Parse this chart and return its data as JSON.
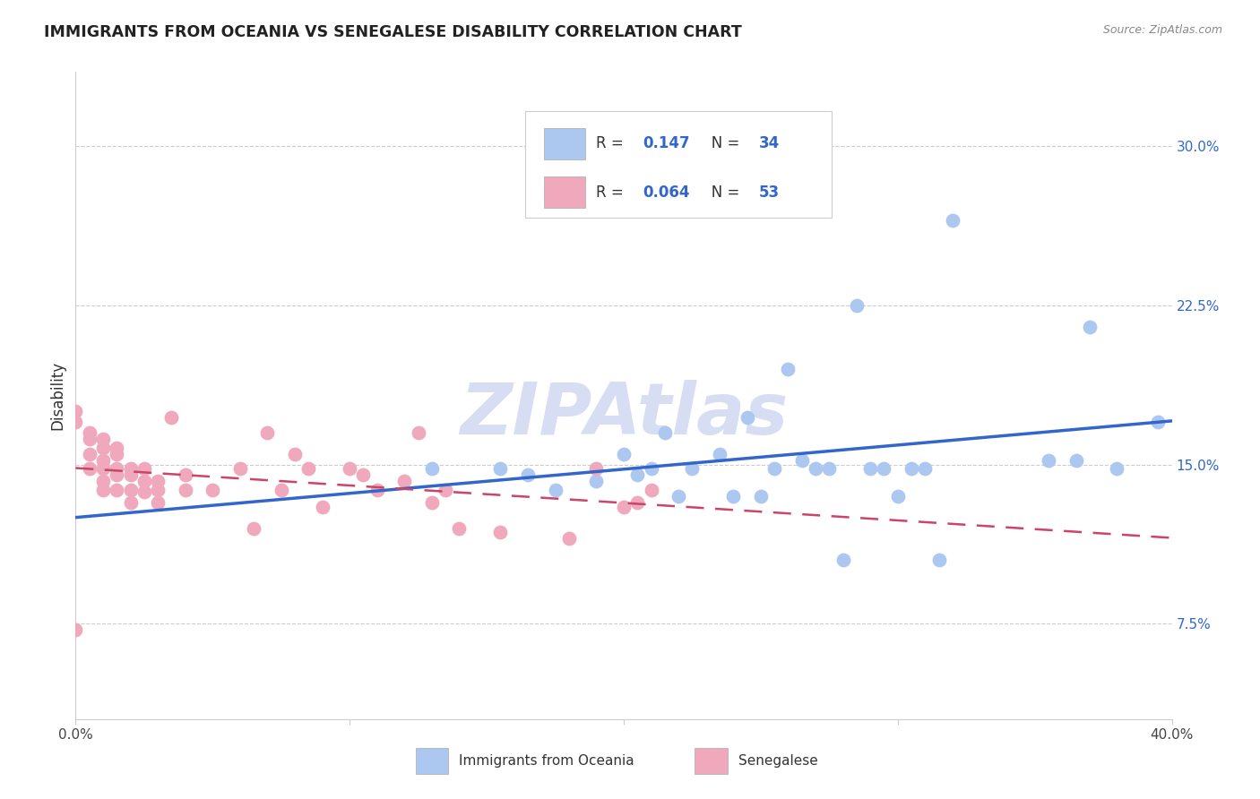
{
  "title": "IMMIGRANTS FROM OCEANIA VS SENEGALESE DISABILITY CORRELATION CHART",
  "source": "Source: ZipAtlas.com",
  "ylabel": "Disability",
  "right_yticks": [
    "30.0%",
    "22.5%",
    "15.0%",
    "7.5%"
  ],
  "right_ytick_vals": [
    0.3,
    0.225,
    0.15,
    0.075
  ],
  "xmin": 0.0,
  "xmax": 0.4,
  "ymin": 0.03,
  "ymax": 0.335,
  "legend_r_blue": "0.147",
  "legend_n_blue": "34",
  "legend_r_pink": "0.064",
  "legend_n_pink": "53",
  "blue_color": "#adc8f0",
  "pink_color": "#f0a8bc",
  "blue_line_color": "#3366cc",
  "pink_line_color": "#cc4466",
  "grid_color": "#cccccc",
  "text_color": "#3366cc",
  "watermark_color": "#d0d8f0",
  "blue_points_x": [
    0.13,
    0.155,
    0.165,
    0.175,
    0.19,
    0.2,
    0.205,
    0.21,
    0.215,
    0.22,
    0.225,
    0.235,
    0.24,
    0.245,
    0.25,
    0.255,
    0.26,
    0.265,
    0.27,
    0.275,
    0.28,
    0.285,
    0.29,
    0.295,
    0.3,
    0.305,
    0.31,
    0.315,
    0.32,
    0.355,
    0.365,
    0.37,
    0.38,
    0.395
  ],
  "blue_points_y": [
    0.148,
    0.148,
    0.145,
    0.138,
    0.142,
    0.155,
    0.145,
    0.148,
    0.165,
    0.135,
    0.148,
    0.155,
    0.135,
    0.172,
    0.135,
    0.148,
    0.195,
    0.152,
    0.148,
    0.148,
    0.105,
    0.225,
    0.148,
    0.148,
    0.135,
    0.148,
    0.148,
    0.105,
    0.265,
    0.152,
    0.152,
    0.215,
    0.148,
    0.17
  ],
  "pink_points_x": [
    0.0,
    0.0,
    0.005,
    0.005,
    0.005,
    0.01,
    0.01,
    0.01,
    0.01,
    0.01,
    0.015,
    0.015,
    0.015,
    0.015,
    0.02,
    0.02,
    0.02,
    0.02,
    0.025,
    0.025,
    0.025,
    0.03,
    0.03,
    0.03,
    0.035,
    0.04,
    0.04,
    0.05,
    0.06,
    0.065,
    0.07,
    0.075,
    0.08,
    0.085,
    0.09,
    0.1,
    0.105,
    0.11,
    0.12,
    0.125,
    0.13,
    0.135,
    0.14,
    0.155,
    0.18,
    0.19,
    0.2,
    0.205,
    0.21,
    0.0,
    0.005,
    0.01,
    0.015
  ],
  "pink_points_y": [
    0.175,
    0.17,
    0.162,
    0.155,
    0.148,
    0.158,
    0.152,
    0.148,
    0.142,
    0.138,
    0.155,
    0.148,
    0.145,
    0.138,
    0.148,
    0.145,
    0.138,
    0.132,
    0.148,
    0.142,
    0.137,
    0.142,
    0.138,
    0.132,
    0.172,
    0.145,
    0.138,
    0.138,
    0.148,
    0.12,
    0.165,
    0.138,
    0.155,
    0.148,
    0.13,
    0.148,
    0.145,
    0.138,
    0.142,
    0.165,
    0.132,
    0.138,
    0.12,
    0.118,
    0.115,
    0.148,
    0.13,
    0.132,
    0.138,
    0.072,
    0.165,
    0.162,
    0.158
  ],
  "watermark": "ZIPAtlas"
}
